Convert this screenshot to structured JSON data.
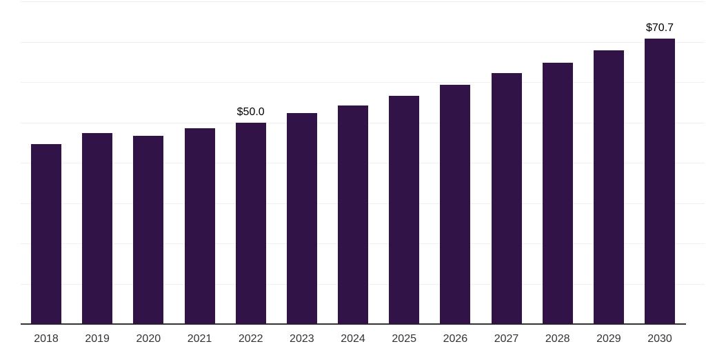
{
  "chart_data": {
    "type": "bar",
    "title": "",
    "xlabel": "",
    "ylabel": "",
    "categories": [
      "2018",
      "2019",
      "2020",
      "2021",
      "2022",
      "2023",
      "2024",
      "2025",
      "2026",
      "2027",
      "2028",
      "2029",
      "2030"
    ],
    "values": [
      44.7,
      47.3,
      46.6,
      48.6,
      50.0,
      52.3,
      54.2,
      56.6,
      59.4,
      62.3,
      64.8,
      67.9,
      70.7
    ],
    "data_labels": [
      "",
      "",
      "",
      "",
      "$50.0",
      "",
      "",
      "",
      "",
      "",
      "",
      "",
      "$70.7"
    ],
    "ylim": [
      0,
      80
    ],
    "grid": "horizontal gridlines every 10 units, no y-axis tick labels",
    "legend": "none"
  },
  "style": {
    "bar_color": "#311348",
    "grid_color": "#f0f0f0",
    "axis_color": "#333333",
    "tick_label_color": "#333333",
    "data_label_color": "#000000",
    "background_color": "#ffffff"
  }
}
